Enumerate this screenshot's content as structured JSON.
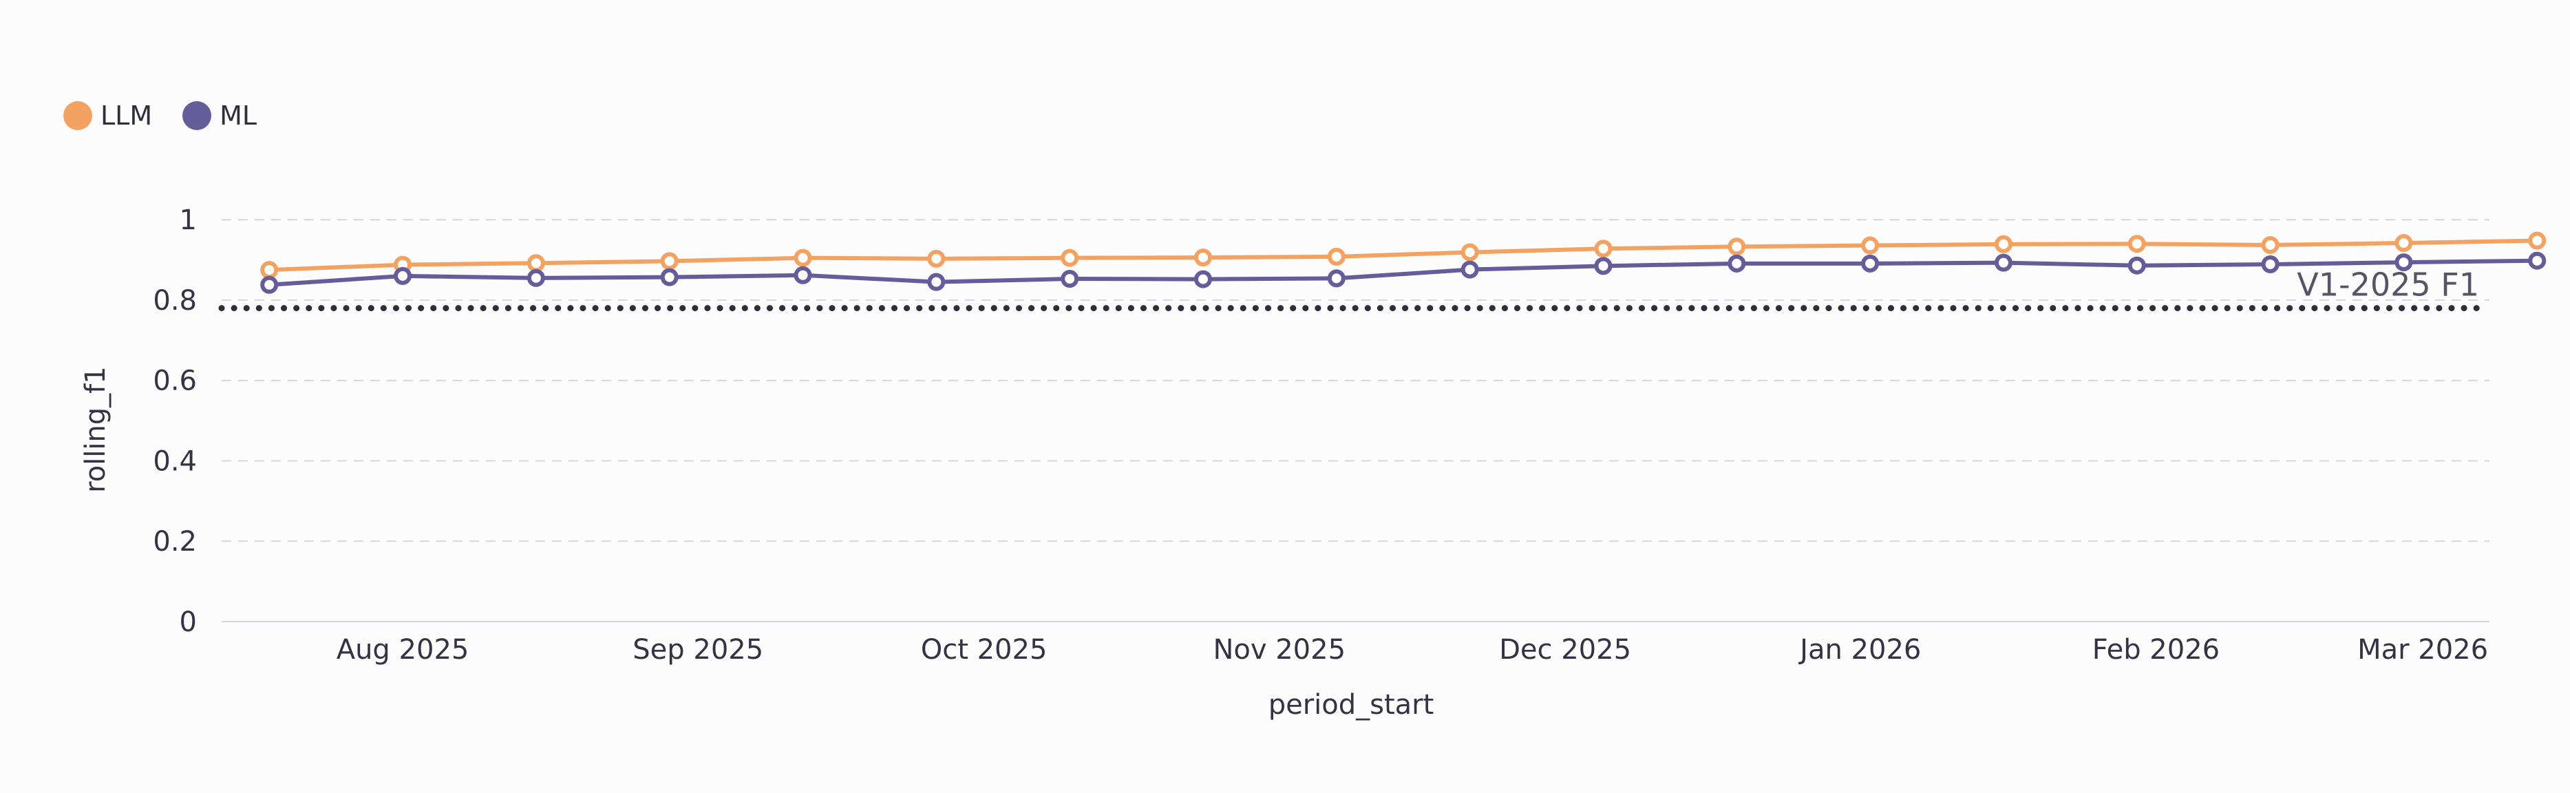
{
  "chart_data": {
    "type": "line",
    "title": "",
    "xlabel": "period_start",
    "ylabel": "rolling_f1",
    "ylim": [
      0,
      1.05
    ],
    "yticks": [
      0,
      0.2,
      0.4,
      0.6,
      0.8,
      1
    ],
    "ytick_labels": [
      "0",
      "0.2",
      "0.4",
      "0.6",
      "0.8",
      "1"
    ],
    "xlim": [
      "2025-07-13",
      "2026-03-08"
    ],
    "xticks": [
      "2025-08-01",
      "2025-09-01",
      "2025-10-01",
      "2025-11-01",
      "2025-12-01",
      "2026-01-01",
      "2026-02-01",
      "2026-03-01"
    ],
    "xtick_labels": [
      "Aug 2025",
      "Sep 2025",
      "Oct 2025",
      "Nov 2025",
      "Dec 2025",
      "Jan 2026",
      "Feb 2026",
      "Mar 2026"
    ],
    "grid": true,
    "legend_position": "top-left",
    "x": [
      "2025-07-18",
      "2025-08-01",
      "2025-08-15",
      "2025-08-29",
      "2025-09-12",
      "2025-09-26",
      "2025-10-10",
      "2025-10-24",
      "2025-11-07",
      "2025-11-21",
      "2025-12-05",
      "2025-12-19",
      "2026-01-02",
      "2026-01-16",
      "2026-01-30",
      "2026-02-13",
      "2026-02-27",
      "2026-03-13"
    ],
    "series": [
      {
        "name": "LLM",
        "color": "#f4a261",
        "values": [
          0.875,
          0.888,
          0.892,
          0.897,
          0.905,
          0.903,
          0.905,
          0.906,
          0.908,
          0.919,
          0.928,
          0.933,
          0.936,
          0.939,
          0.94,
          0.937,
          0.942,
          0.948
        ]
      },
      {
        "name": "ML",
        "color": "#655d9a",
        "values": [
          0.838,
          0.86,
          0.855,
          0.857,
          0.862,
          0.845,
          0.853,
          0.852,
          0.854,
          0.876,
          0.885,
          0.891,
          0.891,
          0.893,
          0.886,
          0.889,
          0.894,
          0.898
        ]
      }
    ],
    "reference_line": {
      "label": "V1-2025 F1",
      "value": 0.78,
      "style": "dotted",
      "color": "#2e2e3a"
    }
  }
}
